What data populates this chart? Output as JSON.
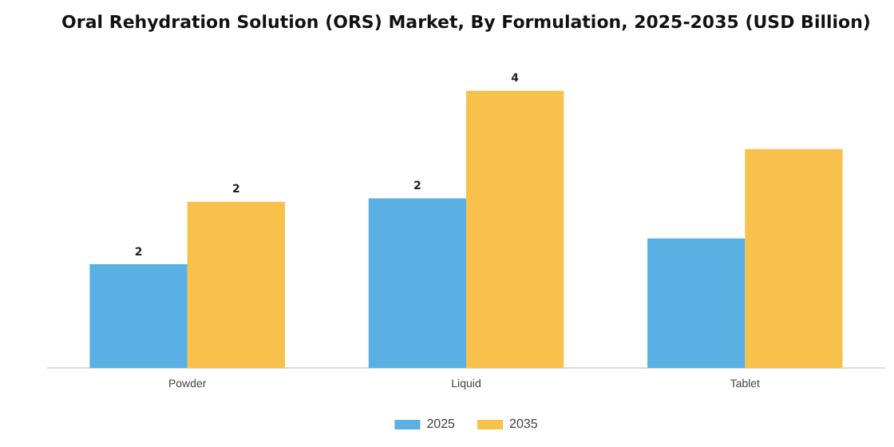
{
  "chart_data": {
    "type": "bar",
    "title": "Oral Rehydration Solution (ORS) Market, By Formulation, 2025-2035 (USD Billion)",
    "categories": [
      "Powder",
      "Liquid",
      "Tablet"
    ],
    "legend": "bottom",
    "grid": false,
    "series": [
      {
        "name": "2025",
        "color": "#5aafe3",
        "values": [
          1.5,
          2.45,
          1.87
        ],
        "value_labels": [
          "2",
          "2",
          null
        ]
      },
      {
        "name": "2035",
        "color": "#f7c14b",
        "values": [
          2.4,
          4.0,
          3.16
        ],
        "value_labels": [
          "2",
          "4",
          null
        ]
      }
    ]
  }
}
